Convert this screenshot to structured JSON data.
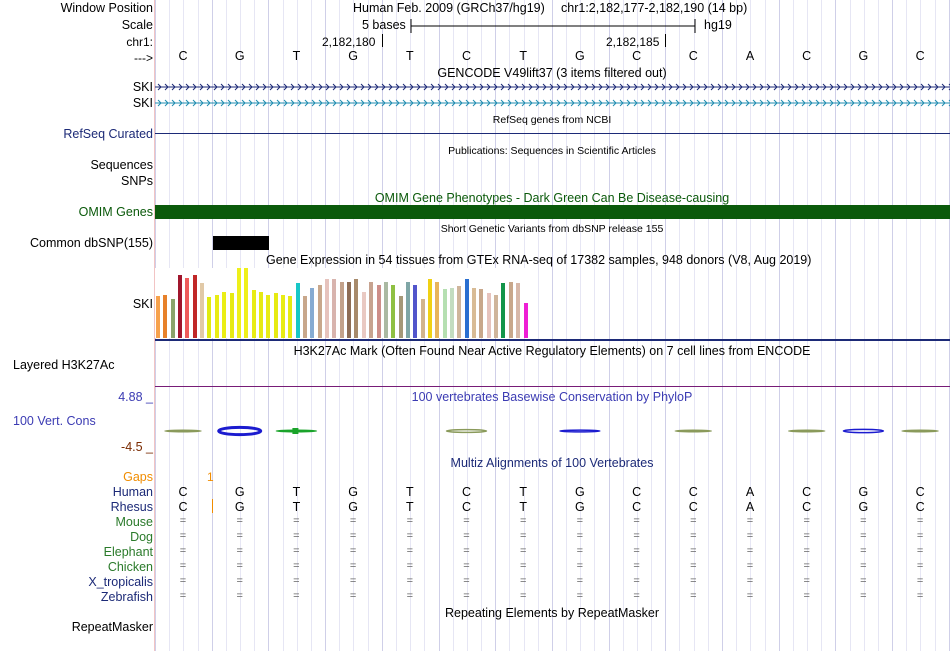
{
  "labels": {
    "window_position": "Window Position",
    "scale": "Scale",
    "chr": "chr1:",
    "arrow": "--->",
    "refseq": "RefSeq Curated",
    "sequences": "Sequences",
    "snps": "SNPs",
    "omim": "OMIM Genes",
    "common_dbsnp": "Common dbSNP(155)",
    "gtex_gene": "SKI",
    "h3k27ac": "Layered H3K27Ac",
    "phylop_max": "4.88 _",
    "phylop_name": "100 Vert. Cons",
    "phylop_min": "-4.5 _",
    "gaps": "Gaps"
  },
  "header": {
    "assembly": "Human Feb. 2009 (GRCh37/hg19)",
    "position": "chr1:2,182,177-2,182,190 (14 bp)",
    "scale_text": "5 bases",
    "scale_db": "hg19",
    "coord1": "2,182,180",
    "coord2": "2,182,185"
  },
  "bases": [
    "C",
    "G",
    "T",
    "G",
    "T",
    "C",
    "T",
    "G",
    "C",
    "C",
    "A",
    "C",
    "G",
    "C"
  ],
  "tracks": {
    "gencode_title": "GENCODE V49lift37 (3 items filtered out)",
    "gencode_items": [
      {
        "name": "SKI",
        "color": "#1c2a77"
      },
      {
        "name": "SKI",
        "color": "#1f8cb0"
      }
    ],
    "refseq_title": "RefSeq genes from NCBI",
    "publications_title": "Publications: Sequences in Scientific Articles",
    "omim_title": "OMIM Gene Phenotypes - Dark Green Can Be Disease-causing",
    "snp_title": "Short Genetic Variants from dbSNP release 155",
    "gtex_title": "Gene Expression in 54 tissues from GTEx RNA-seq of 17382 samples, 948 donors (V8, Aug 2019)",
    "h3k27ac_title": "H3K27Ac Mark (Often Found Near Active Regulatory Elements) on 7 cell lines from ENCODE",
    "phylop_title": "100 vertebrates Basewise Conservation by PhyloP",
    "multiz_title": "Multiz Alignments of 100 Vertebrates",
    "gaps_value": "1",
    "repeat_title": "Repeating Elements by RepeatMasker",
    "repeat_label": "RepeatMasker"
  },
  "alignment_species": [
    {
      "name": "Human",
      "color": "#1c2a77",
      "row": "bases"
    },
    {
      "name": "Rhesus",
      "color": "#1c2a77",
      "row": "bases"
    },
    {
      "name": "Mouse",
      "color": "#2a7a2a",
      "row": "="
    },
    {
      "name": "Dog",
      "color": "#2a7a2a",
      "row": "="
    },
    {
      "name": "Elephant",
      "color": "#2a7a2a",
      "row": "="
    },
    {
      "name": "Chicken",
      "color": "#2a7a2a",
      "row": "="
    },
    {
      "name": "X_tropicalis",
      "color": "#1c2a77",
      "row": "="
    },
    {
      "name": "Zebrafish",
      "color": "#1c2a77",
      "row": "="
    }
  ],
  "gtex_values": [
    0.6,
    0.62,
    0.55,
    0.9,
    0.86,
    0.9,
    0.78,
    0.58,
    0.62,
    0.66,
    0.64,
    1.0,
    1.0,
    0.68,
    0.66,
    0.62,
    0.64,
    0.62,
    0.6,
    0.78,
    0.6,
    0.72,
    0.76,
    0.84,
    0.84,
    0.8,
    0.8,
    0.84,
    0.66,
    0.8,
    0.76,
    0.8,
    0.76,
    0.6,
    0.8,
    0.76,
    0.56,
    0.84,
    0.8,
    0.7,
    0.72,
    0.74,
    0.84,
    0.72,
    0.7,
    0.64,
    0.62,
    0.78,
    0.8,
    0.78,
    0.5
  ],
  "gtex_colors": [
    "#f7a14c",
    "#e7812a",
    "#8aa36a",
    "#a0162d",
    "#ee5b5b",
    "#c02727",
    "#e1c9a7",
    "#e0ea12",
    "#e8ec15",
    "#eaee15",
    "#e6ea12",
    "#eef01a",
    "#eef01a",
    "#e8ec15",
    "#e6ea12",
    "#e8ec15",
    "#e6ea12",
    "#e8ec15",
    "#e6ea12",
    "#17c7c7",
    "#c8a78b",
    "#86abd2",
    "#c8a78b",
    "#e6c3bd",
    "#d8b4ae",
    "#c3a28b",
    "#8e6d55",
    "#a78a6b",
    "#e9c9c2",
    "#c7a390",
    "#cd8e89",
    "#aab9a2",
    "#8fc043",
    "#a59878",
    "#7fa6a6",
    "#5255cb",
    "#d2b48c",
    "#f0d114",
    "#e8b55c",
    "#b5dfb1",
    "#c3dcc0",
    "#cfb59b",
    "#2a6fd0",
    "#d8bb95",
    "#c8a78b",
    "#e6c3bd",
    "#cfb59b",
    "#13954a",
    "#c8a78b",
    "#d7b8a9",
    "#ee1fd5"
  ],
  "phylop_marks": [
    {
      "base": 0,
      "amp": 0.05,
      "color": "#8a9a5b"
    },
    {
      "base": 1,
      "amp": 0.9,
      "color": "#1b1bcf"
    },
    {
      "base": 2,
      "amp": 0.15,
      "color": "#1aa32a"
    },
    {
      "base": 5,
      "amp": 0.35,
      "color": "#8a9a5b"
    },
    {
      "base": 7,
      "amp": 0.22,
      "color": "#1b1bcf"
    },
    {
      "base": 9,
      "amp": 0.05,
      "color": "#8a9a5b"
    },
    {
      "base": 11,
      "amp": 0.05,
      "color": "#8a9a5b"
    },
    {
      "base": 12,
      "amp": 0.4,
      "color": "#1b1bcf"
    },
    {
      "base": 13,
      "amp": 0.05,
      "color": "#8a9a5b"
    }
  ],
  "colors": {
    "omim": "#0b5a0b",
    "gtex_divider": "#1c2a77",
    "h3k27ac_divider": "#771c77",
    "track_name_blue": "#1c2a77",
    "phylop_name": "#3b3bb3",
    "phylop_min": "#7a2a00",
    "gaps": "#f08c00",
    "grid": "#d8d8f0",
    "gutter": "#f2c4c4"
  }
}
